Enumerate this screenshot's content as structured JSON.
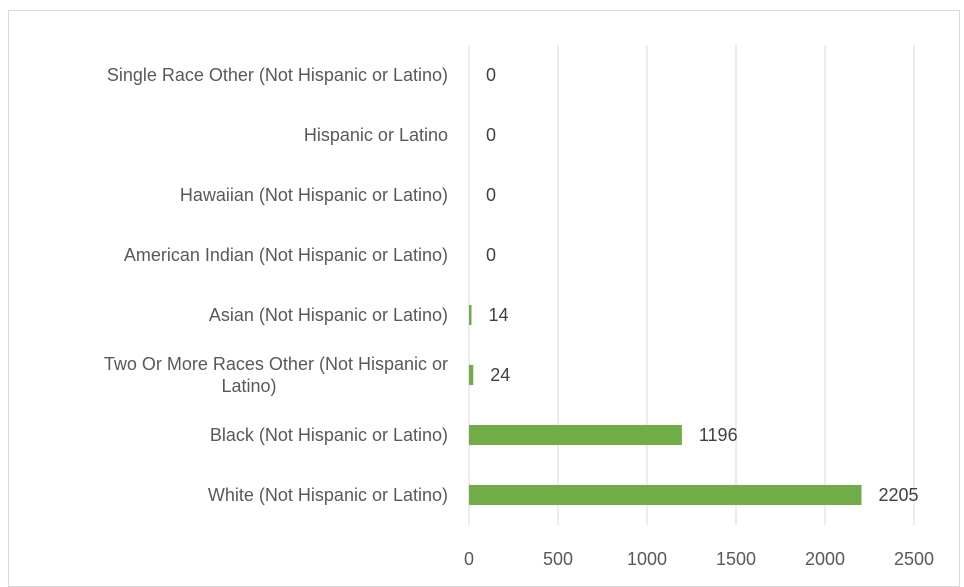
{
  "chart_data": {
    "type": "bar",
    "orientation": "horizontal",
    "categories": [
      [
        "Single Race Other (Not Hispanic or Latino)"
      ],
      [
        "Hispanic or Latino"
      ],
      [
        "Hawaiian  (Not Hispanic or Latino)"
      ],
      [
        "American Indian  (Not Hispanic or Latino)"
      ],
      [
        "Asian  (Not Hispanic or Latino)"
      ],
      [
        "Two Or More Races Other (Not Hispanic or",
        "Latino)"
      ],
      [
        "Black  (Not Hispanic or Latino)"
      ],
      [
        "White (Not Hispanic or Latino)"
      ]
    ],
    "values": [
      0,
      0,
      0,
      0,
      14,
      24,
      1196,
      2205
    ],
    "data_labels": [
      "0",
      "0",
      "0",
      "0",
      "14",
      "24",
      "1196",
      "2205"
    ],
    "x_ticks": [
      "0",
      "500",
      "1000",
      "1500",
      "2000",
      "2500"
    ],
    "xlim": [
      0,
      2500
    ],
    "grid": "vertical",
    "legend": "none",
    "bar_color": "#70AD47",
    "grid_color": "#D9D9D9",
    "title": "",
    "xlabel": "",
    "ylabel": ""
  }
}
